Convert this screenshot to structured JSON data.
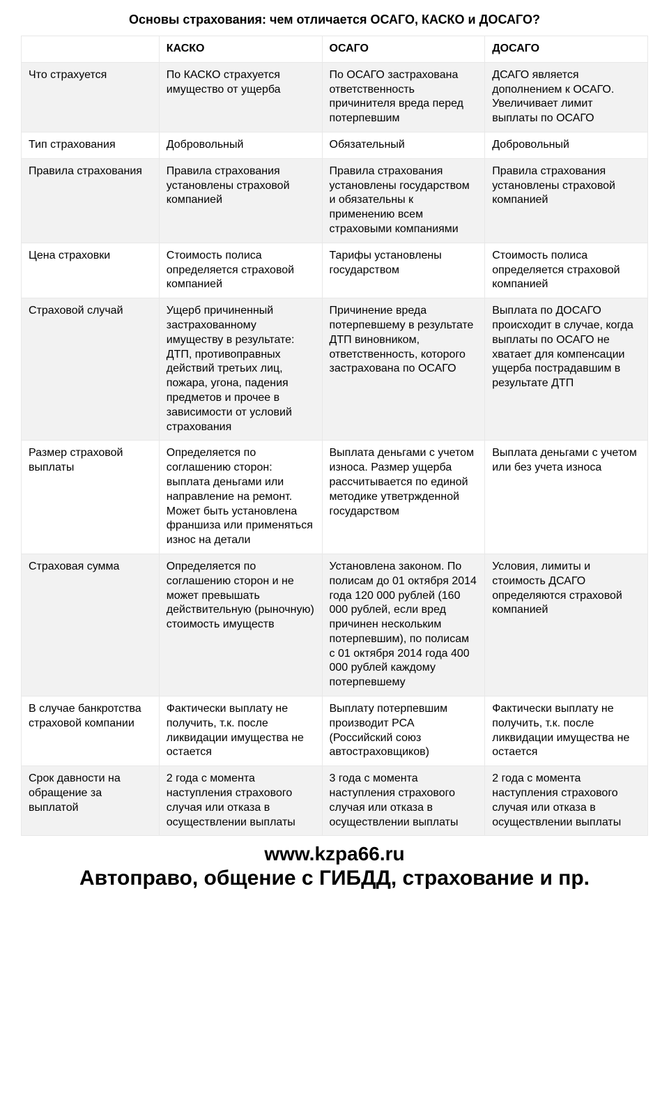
{
  "title": "Основы страхования: чем отличается ОСАГО, КАСКО и ДОСАГО?",
  "table": {
    "columns": [
      "",
      "КАСКО",
      "ОСАГО",
      "ДОСАГО"
    ],
    "rows": [
      {
        "label": "Что страхуется",
        "cells": [
          "По КАСКО страхуется имущество от ущерба",
          "По ОСАГО застрахована ответственность причинителя вреда перед потерпевшим",
          "ДСАГО является дополнением к ОСАГО. Увеличивает лимит выплаты по ОСАГО"
        ]
      },
      {
        "label": "Тип страхования",
        "cells": [
          "Добровольный",
          "Обязательный",
          "Добровольный"
        ]
      },
      {
        "label": "Правила страхования",
        "cells": [
          "Правила страхования установлены страховой компанией",
          "Правила страхования установлены государством и обязательны к применению всем страховыми компаниями",
          "Правила страхования установлены страховой компанией"
        ]
      },
      {
        "label": "Цена страховки",
        "cells": [
          "Стоимость полиса определяется страховой компанией",
          "Тарифы установлены государством",
          "Стоимость полиса определяется страховой компанией"
        ]
      },
      {
        "label": "Страховой случай",
        "cells": [
          "Ущерб причиненный застрахованному имуществу в результате: ДТП, противоправных действий третьих лиц, пожара, угона, падения предметов и прочее в зависимости от условий страхования",
          "Причинение вреда потерпевшему в результате ДТП виновником, ответственность, которого застрахована по ОСАГО",
          "Выплата по ДОСАГО происходит в случае, когда выплаты по ОСАГО не хватает для компенсации ущерба пострадавшим в результате ДТП"
        ]
      },
      {
        "label": "Размер страховой выплаты",
        "cells": [
          "Определяется по соглашению сторон: выплата деньгами или направление на ремонт. Может быть установлена франшиза или применяться износ на детали",
          "Выплата деньгами с учетом износа. Размер ущерба рассчитывается по единой методике утветржденной государством",
          "Выплата деньгами с учетом или без учета износа"
        ]
      },
      {
        "label": "Страховая сумма",
        "cells": [
          "Определяется по соглашению сторон и не может превышать действительную (рыночную) стоимость имуществ",
          "Установлена законом. По полисам до 01 октября 2014 года 120 000 рублей (160 000 рублей, если вред причинен нескольким потерпевшим), по полисам с 01 октября 2014 года 400 000 рублей каждому потерпевшему",
          "Условия, лимиты и стоимость ДСАГО определяются страховой компанией"
        ]
      },
      {
        "label": "В случае банкротства страховой компании",
        "cells": [
          "Фактически выплату не получить, т.к. после ликвидации имущества не остается",
          "Выплату потерпевшим производит РСА (Российский союз автостраховщиков)",
          "Фактически выплату не получить, т.к. после ликвидации имущества не остается"
        ]
      },
      {
        "label": "Срок давности на обращение за выплатой",
        "cells": [
          "2 года с момента наступления страхового случая или отказа в осуществлении выплаты",
          "3 года с момента наступления страхового случая или отказа в осуществлении выплаты",
          "2 года с момента наступления страхового случая или отказа в осуществлении выплаты"
        ]
      }
    ]
  },
  "footer": {
    "url": "www.kzpa66.ru",
    "tagline": "Автоправо, общение с ГИБДД, страхование и пр."
  },
  "style": {
    "background_color": "#ffffff",
    "alt_row_color": "#f2f2f2",
    "border_color": "#e8e8e8",
    "text_color": "#000000",
    "title_fontsize": 18,
    "cell_fontsize": 16,
    "footer_url_fontsize": 28,
    "footer_tag_fontsize": 30
  }
}
